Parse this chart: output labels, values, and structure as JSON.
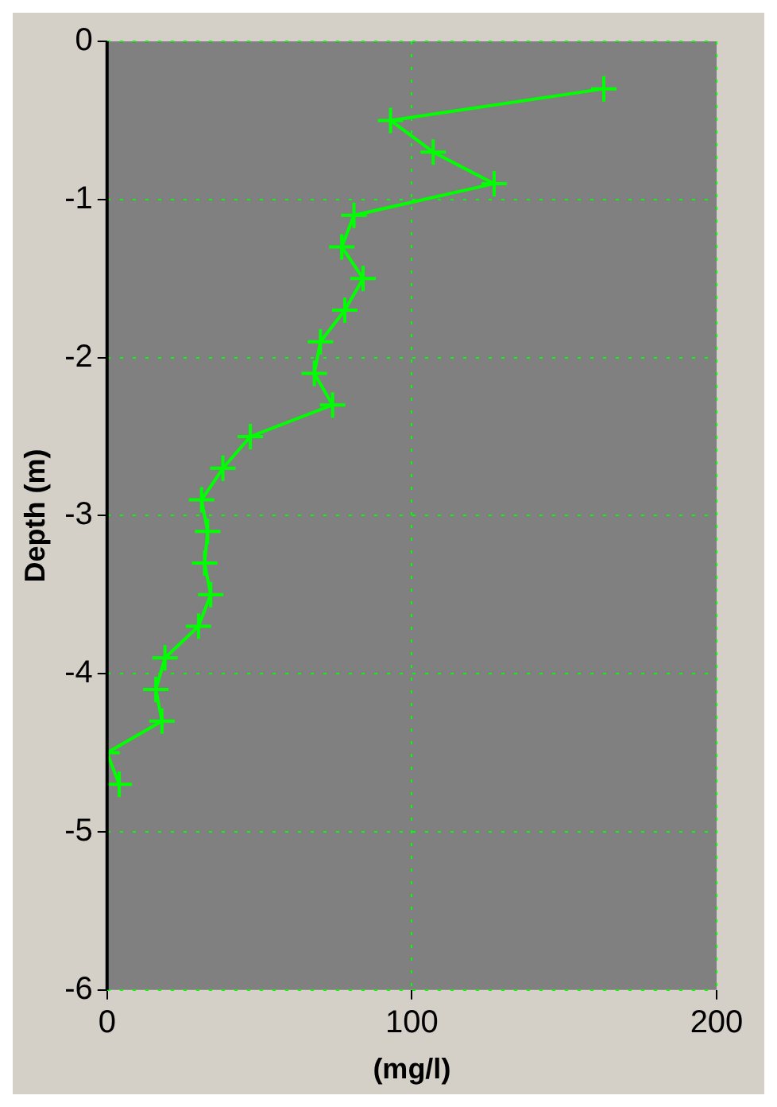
{
  "chart_data": {
    "type": "line",
    "xlabel": "(mg/l)",
    "ylabel": "Depth (m)",
    "x": [
      163,
      93,
      107,
      127,
      81,
      77,
      84,
      78,
      70,
      68,
      74,
      47,
      38,
      31,
      33,
      32,
      34,
      30,
      19,
      16,
      18,
      0,
      4
    ],
    "values": [
      -0.3,
      -0.5,
      -0.7,
      -0.9,
      -1.1,
      -1.3,
      -1.5,
      -1.7,
      -1.9,
      -2.1,
      -2.3,
      -2.5,
      -2.7,
      -2.9,
      -3.1,
      -3.3,
      -3.5,
      -3.7,
      -3.9,
      -4.1,
      -4.3,
      -4.5,
      -4.7
    ],
    "color": "#00ff00",
    "marker": "cross",
    "line_style": "solid",
    "xlim": [
      0,
      200
    ],
    "xticks": [
      0,
      100,
      200
    ],
    "ylim": [
      -6,
      0
    ],
    "yticks": [
      -6,
      -5,
      -4,
      -3,
      -2,
      -1,
      0
    ],
    "grid": true,
    "legend": false
  }
}
